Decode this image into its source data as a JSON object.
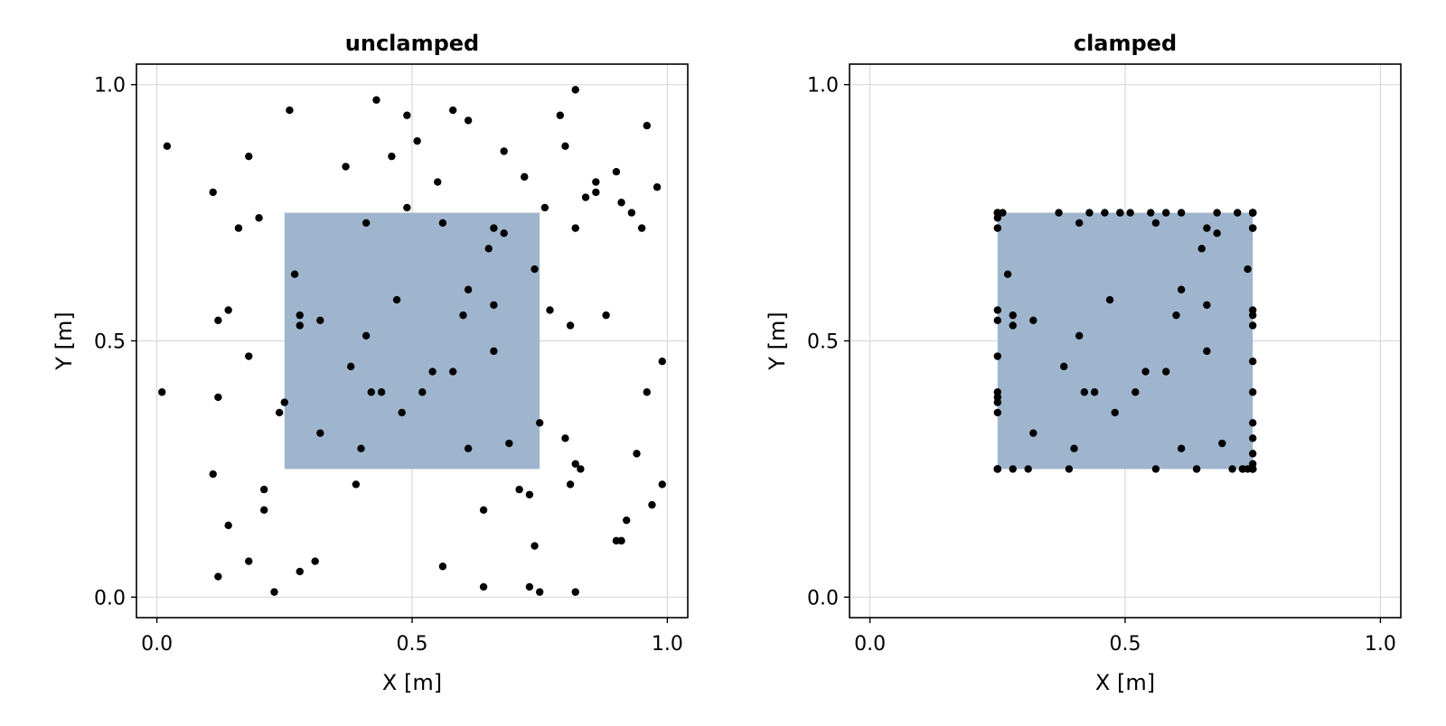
{
  "chart_data": [
    {
      "type": "scatter",
      "title": "unclamped",
      "xlabel": "X [m]",
      "ylabel": "Y [m]",
      "xlim": [
        -0.04,
        1.04
      ],
      "ylim": [
        -0.04,
        1.04
      ],
      "xticks": [
        "0.0",
        "0.5",
        "1.0"
      ],
      "yticks": [
        "0.0",
        "0.5",
        "1.0"
      ],
      "grid": true,
      "region": {
        "x": [
          0.25,
          0.75
        ],
        "y": [
          0.25,
          0.75
        ],
        "color": "#9fb5cd"
      },
      "point_color": "#000000",
      "points": [
        [
          0.01,
          0.4
        ],
        [
          0.02,
          0.88
        ],
        [
          0.11,
          0.79
        ],
        [
          0.11,
          0.24
        ],
        [
          0.12,
          0.54
        ],
        [
          0.12,
          0.39
        ],
        [
          0.12,
          0.04
        ],
        [
          0.14,
          0.56
        ],
        [
          0.14,
          0.14
        ],
        [
          0.16,
          0.72
        ],
        [
          0.18,
          0.07
        ],
        [
          0.18,
          0.86
        ],
        [
          0.18,
          0.47
        ],
        [
          0.2,
          0.74
        ],
        [
          0.21,
          0.21
        ],
        [
          0.21,
          0.17
        ],
        [
          0.23,
          0.01
        ],
        [
          0.24,
          0.36
        ],
        [
          0.25,
          0.38
        ],
        [
          0.26,
          0.95
        ],
        [
          0.27,
          0.63
        ],
        [
          0.28,
          0.55
        ],
        [
          0.28,
          0.53
        ],
        [
          0.28,
          0.05
        ],
        [
          0.31,
          0.07
        ],
        [
          0.32,
          0.54
        ],
        [
          0.32,
          0.32
        ],
        [
          0.37,
          0.84
        ],
        [
          0.38,
          0.45
        ],
        [
          0.39,
          0.22
        ],
        [
          0.4,
          0.29
        ],
        [
          0.41,
          0.73
        ],
        [
          0.41,
          0.51
        ],
        [
          0.42,
          0.4
        ],
        [
          0.43,
          0.97
        ],
        [
          0.44,
          0.4
        ],
        [
          0.46,
          0.86
        ],
        [
          0.47,
          0.58
        ],
        [
          0.48,
          0.36
        ],
        [
          0.49,
          0.94
        ],
        [
          0.49,
          0.76
        ],
        [
          0.51,
          0.89
        ],
        [
          0.52,
          0.4
        ],
        [
          0.54,
          0.44
        ],
        [
          0.55,
          0.81
        ],
        [
          0.56,
          0.73
        ],
        [
          0.56,
          0.06
        ],
        [
          0.58,
          0.95
        ],
        [
          0.58,
          0.44
        ],
        [
          0.6,
          0.55
        ],
        [
          0.61,
          0.93
        ],
        [
          0.61,
          0.6
        ],
        [
          0.61,
          0.29
        ],
        [
          0.64,
          0.17
        ],
        [
          0.64,
          0.02
        ],
        [
          0.65,
          0.68
        ],
        [
          0.66,
          0.57
        ],
        [
          0.66,
          0.48
        ],
        [
          0.66,
          0.72
        ],
        [
          0.68,
          0.87
        ],
        [
          0.68,
          0.71
        ],
        [
          0.69,
          0.3
        ],
        [
          0.71,
          0.21
        ],
        [
          0.72,
          0.82
        ],
        [
          0.73,
          0.2
        ],
        [
          0.73,
          0.02
        ],
        [
          0.74,
          0.64
        ],
        [
          0.74,
          0.1
        ],
        [
          0.75,
          0.34
        ],
        [
          0.75,
          0.01
        ],
        [
          0.76,
          0.76
        ],
        [
          0.77,
          0.56
        ],
        [
          0.79,
          0.94
        ],
        [
          0.8,
          0.88
        ],
        [
          0.8,
          0.31
        ],
        [
          0.81,
          0.53
        ],
        [
          0.81,
          0.22
        ],
        [
          0.82,
          0.99
        ],
        [
          0.82,
          0.72
        ],
        [
          0.82,
          0.26
        ],
        [
          0.82,
          0.01
        ],
        [
          0.83,
          0.25
        ],
        [
          0.84,
          0.78
        ],
        [
          0.86,
          0.79
        ],
        [
          0.86,
          0.81
        ],
        [
          0.88,
          0.55
        ],
        [
          0.9,
          0.83
        ],
        [
          0.9,
          0.11
        ],
        [
          0.91,
          0.77
        ],
        [
          0.91,
          0.11
        ],
        [
          0.92,
          0.15
        ],
        [
          0.93,
          0.75
        ],
        [
          0.94,
          0.28
        ],
        [
          0.95,
          0.72
        ],
        [
          0.96,
          0.92
        ],
        [
          0.96,
          0.4
        ],
        [
          0.97,
          0.18
        ],
        [
          0.98,
          0.8
        ],
        [
          0.99,
          0.46
        ],
        [
          0.99,
          0.22
        ]
      ]
    },
    {
      "type": "scatter",
      "title": "clamped",
      "xlabel": "X [m]",
      "ylabel": "Y [m]",
      "xlim": [
        -0.04,
        1.04
      ],
      "ylim": [
        -0.04,
        1.04
      ],
      "xticks": [
        "0.0",
        "0.5",
        "1.0"
      ],
      "yticks": [
        "0.0",
        "0.5",
        "1.0"
      ],
      "grid": true,
      "region": {
        "x": [
          0.25,
          0.75
        ],
        "y": [
          0.25,
          0.75
        ],
        "color": "#9fb5cd"
      },
      "point_color": "#000000",
      "points": [
        [
          0.25,
          0.4
        ],
        [
          0.25,
          0.75
        ],
        [
          0.25,
          0.75
        ],
        [
          0.25,
          0.25
        ],
        [
          0.25,
          0.54
        ],
        [
          0.25,
          0.39
        ],
        [
          0.25,
          0.25
        ],
        [
          0.25,
          0.56
        ],
        [
          0.25,
          0.25
        ],
        [
          0.25,
          0.72
        ],
        [
          0.25,
          0.25
        ],
        [
          0.25,
          0.75
        ],
        [
          0.25,
          0.47
        ],
        [
          0.25,
          0.74
        ],
        [
          0.25,
          0.25
        ],
        [
          0.25,
          0.25
        ],
        [
          0.25,
          0.25
        ],
        [
          0.25,
          0.36
        ],
        [
          0.25,
          0.38
        ],
        [
          0.26,
          0.75
        ],
        [
          0.27,
          0.63
        ],
        [
          0.28,
          0.55
        ],
        [
          0.28,
          0.53
        ],
        [
          0.28,
          0.25
        ],
        [
          0.31,
          0.25
        ],
        [
          0.32,
          0.54
        ],
        [
          0.32,
          0.32
        ],
        [
          0.37,
          0.75
        ],
        [
          0.38,
          0.45
        ],
        [
          0.39,
          0.25
        ],
        [
          0.4,
          0.29
        ],
        [
          0.41,
          0.73
        ],
        [
          0.41,
          0.51
        ],
        [
          0.42,
          0.4
        ],
        [
          0.43,
          0.75
        ],
        [
          0.44,
          0.4
        ],
        [
          0.46,
          0.75
        ],
        [
          0.47,
          0.58
        ],
        [
          0.48,
          0.36
        ],
        [
          0.49,
          0.75
        ],
        [
          0.49,
          0.75
        ],
        [
          0.51,
          0.75
        ],
        [
          0.52,
          0.4
        ],
        [
          0.54,
          0.44
        ],
        [
          0.55,
          0.75
        ],
        [
          0.56,
          0.73
        ],
        [
          0.56,
          0.25
        ],
        [
          0.58,
          0.75
        ],
        [
          0.58,
          0.44
        ],
        [
          0.6,
          0.55
        ],
        [
          0.61,
          0.75
        ],
        [
          0.61,
          0.6
        ],
        [
          0.61,
          0.29
        ],
        [
          0.64,
          0.25
        ],
        [
          0.64,
          0.25
        ],
        [
          0.65,
          0.68
        ],
        [
          0.66,
          0.57
        ],
        [
          0.66,
          0.48
        ],
        [
          0.66,
          0.72
        ],
        [
          0.68,
          0.75
        ],
        [
          0.68,
          0.71
        ],
        [
          0.69,
          0.3
        ],
        [
          0.71,
          0.25
        ],
        [
          0.72,
          0.75
        ],
        [
          0.73,
          0.25
        ],
        [
          0.73,
          0.25
        ],
        [
          0.74,
          0.64
        ],
        [
          0.74,
          0.25
        ],
        [
          0.75,
          0.34
        ],
        [
          0.75,
          0.25
        ],
        [
          0.75,
          0.75
        ],
        [
          0.75,
          0.56
        ],
        [
          0.75,
          0.75
        ],
        [
          0.75,
          0.75
        ],
        [
          0.75,
          0.31
        ],
        [
          0.75,
          0.53
        ],
        [
          0.75,
          0.25
        ],
        [
          0.75,
          0.75
        ],
        [
          0.75,
          0.72
        ],
        [
          0.75,
          0.26
        ],
        [
          0.75,
          0.25
        ],
        [
          0.75,
          0.25
        ],
        [
          0.75,
          0.75
        ],
        [
          0.75,
          0.75
        ],
        [
          0.75,
          0.75
        ],
        [
          0.75,
          0.55
        ],
        [
          0.75,
          0.75
        ],
        [
          0.75,
          0.25
        ],
        [
          0.75,
          0.75
        ],
        [
          0.75,
          0.25
        ],
        [
          0.75,
          0.25
        ],
        [
          0.75,
          0.75
        ],
        [
          0.75,
          0.28
        ],
        [
          0.75,
          0.72
        ],
        [
          0.75,
          0.75
        ],
        [
          0.75,
          0.4
        ],
        [
          0.75,
          0.25
        ],
        [
          0.75,
          0.75
        ],
        [
          0.75,
          0.46
        ],
        [
          0.75,
          0.25
        ]
      ]
    }
  ]
}
